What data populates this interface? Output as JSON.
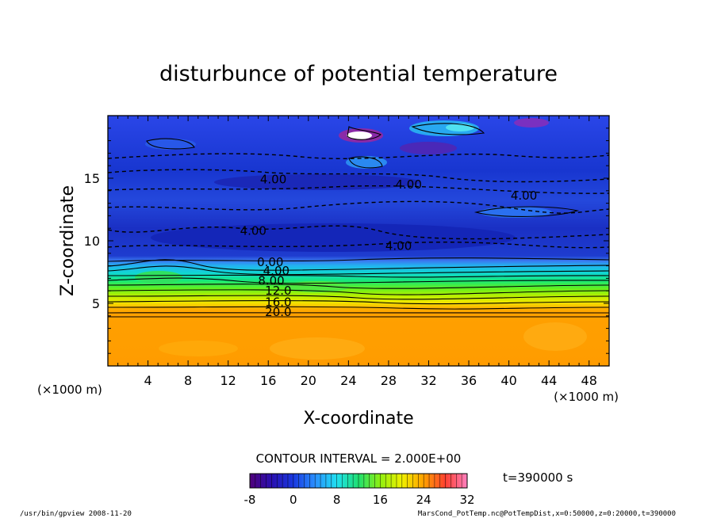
{
  "chart_data": {
    "type": "heatmap",
    "title": "disturbunce of potential temperature",
    "xlabel": "X-coordinate",
    "ylabel": "Z-coordinate",
    "x_unit_left": "(×1000 m)",
    "x_unit_right": "(×1000 m)",
    "xlim": [
      0,
      50
    ],
    "ylim": [
      0,
      20
    ],
    "x_ticks": [
      4,
      8,
      12,
      16,
      20,
      24,
      28,
      32,
      36,
      40,
      44,
      48
    ],
    "y_ticks": [
      5,
      10,
      15
    ],
    "contour_labels": [
      {
        "text": "4.00",
        "x": 16.5,
        "z": 14.9
      },
      {
        "text": "4.00",
        "x": 30,
        "z": 14.5
      },
      {
        "text": "4.00",
        "x": 41.5,
        "z": 13.6
      },
      {
        "text": "4.00",
        "x": 14.5,
        "z": 10.8
      },
      {
        "text": "4.00",
        "x": 29,
        "z": 9.6
      },
      {
        "text": "0.00",
        "x": 16.2,
        "z": 8.3
      },
      {
        "text": "4.00",
        "x": 16.8,
        "z": 7.6
      },
      {
        "text": "8.00",
        "x": 16.3,
        "z": 6.8
      },
      {
        "text": "12.0",
        "x": 17.0,
        "z": 6.0
      },
      {
        "text": "16.0",
        "x": 17.0,
        "z": 5.1
      },
      {
        "text": "20.0",
        "x": 17.0,
        "z": 4.3
      }
    ],
    "contour_interval_text": "CONTOUR INTERVAL = 2.000E+00",
    "colorbar": {
      "min": -8,
      "max": 32,
      "ticks": [
        -8,
        0,
        8,
        16,
        24,
        32
      ]
    },
    "time_label": "t=390000 s",
    "grid": false
  },
  "footer": {
    "left": "/usr/bin/gpview  2008-11-20",
    "right": "MarsCond_PotTemp.nc@PotTempDist,x=0:50000,z=0:20000,t=390000"
  }
}
